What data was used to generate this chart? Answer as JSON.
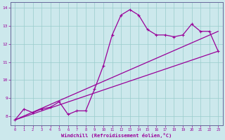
{
  "xlabel": "Windchill (Refroidissement éolien,°C)",
  "background_color": "#cce8ec",
  "line_color": "#990099",
  "grid_color": "#99cccc",
  "spine_color": "#666699",
  "xlim": [
    -0.5,
    23.5
  ],
  "ylim": [
    7.5,
    14.3
  ],
  "xticks": [
    0,
    1,
    2,
    3,
    4,
    5,
    6,
    7,
    8,
    9,
    10,
    11,
    12,
    13,
    14,
    15,
    16,
    17,
    18,
    19,
    20,
    21,
    22,
    23
  ],
  "yticks": [
    8,
    9,
    10,
    11,
    12,
    13,
    14
  ],
  "series1_x": [
    0,
    1,
    2,
    3,
    4,
    5,
    6,
    7,
    8,
    9,
    10,
    11,
    12,
    13,
    14,
    15,
    16,
    17,
    18,
    19,
    20,
    21,
    22,
    23
  ],
  "series1_y": [
    7.8,
    8.4,
    8.2,
    8.4,
    8.5,
    8.8,
    8.1,
    8.3,
    8.3,
    9.5,
    10.8,
    12.5,
    13.6,
    13.9,
    13.6,
    12.8,
    12.5,
    12.5,
    12.4,
    12.5,
    13.1,
    12.7,
    12.7,
    11.6
  ],
  "series2_x": [
    0,
    23
  ],
  "series2_y": [
    7.8,
    11.6
  ],
  "series3_x": [
    0,
    23
  ],
  "series3_y": [
    7.8,
    12.7
  ],
  "marker": "+"
}
